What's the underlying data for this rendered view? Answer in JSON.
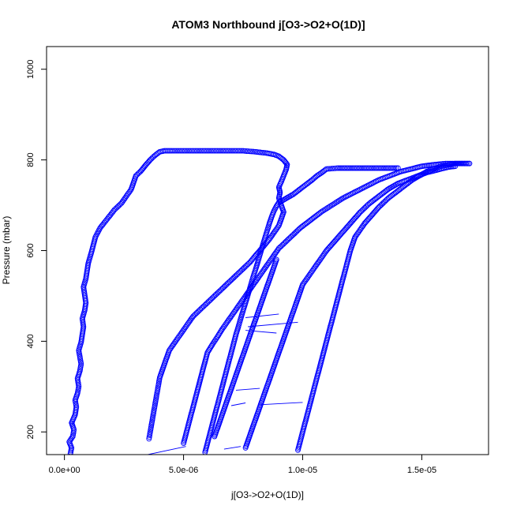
{
  "chart_data": {
    "type": "scatter",
    "title": "ATOM3 Northbound j[O3->O2+O(1D)]",
    "xlabel": "j[O3->O2+O(1D)]",
    "ylabel": "Pressure (mbar)",
    "xlim": [
      -7.5e-07,
      1.78e-05
    ],
    "ylim": [
      1050,
      150
    ],
    "y_reversed": true,
    "xticks": [
      0,
      5e-06,
      1e-05,
      1.5e-05
    ],
    "xtick_labels": [
      "0.0e+00",
      "5.0e-06",
      "1.0e-05",
      "1.5e-05"
    ],
    "yticks": [
      200,
      400,
      600,
      800,
      1000
    ],
    "ytick_labels": [
      "200",
      "400",
      "600",
      "800",
      "1000"
    ],
    "grid": false,
    "legend": "none",
    "marker": "open-circle",
    "color": "#0000ff",
    "series": [
      {
        "profile": 1,
        "x": [
          2.5e-07,
          3e-07,
          2e-07,
          3.5e-07,
          4e-07,
          3e-07,
          4.5e-07,
          5e-07,
          4.5e-07,
          5.5e-07,
          6e-07,
          5.5e-07,
          6.5e-07,
          7e-07,
          6.5e-07,
          6e-07,
          7e-07,
          7.5e-07,
          8e-07,
          7.5e-07,
          8.5e-07,
          9e-07,
          8.5e-07,
          8e-07,
          9e-07,
          9.5e-07,
          1e-06,
          1.1e-06,
          1.2e-06,
          1.3e-06,
          1.5e-06,
          1.8e-06,
          2.1e-06,
          2.4e-06,
          2.6e-06,
          2.8e-06,
          2.9e-06,
          3e-06,
          3.2e-06,
          3.4e-06,
          3.6e-06,
          3.8e-06,
          4e-06,
          4.2e-06,
          4.5e-06,
          5e-06,
          5.5e-06,
          6e-06,
          6.5e-06,
          7e-06,
          7.5e-06,
          8e-06,
          8.5e-06,
          8.8e-06,
          9e-06,
          9.2e-06,
          9.35e-06,
          9.3e-06,
          9.2e-06,
          9.1e-06,
          9e-06,
          9.05e-06,
          9e-06,
          9.1e-06,
          9.2e-06,
          9.1e-06,
          9e-06,
          8.8e-06,
          8.6e-06,
          8.4e-06,
          8.2e-06,
          8e-06,
          7.8e-06,
          7.5e-06,
          7.2e-06,
          6.9e-06,
          6.6e-06,
          6.3e-06,
          6e-06,
          5.7e-06,
          5.4e-06,
          5.2e-06,
          5e-06,
          4.8e-06,
          4.6e-06,
          4.4e-06,
          4.3e-06,
          4.2e-06,
          4.1e-06,
          4e-06,
          3.95e-06,
          3.9e-06,
          3.85e-06,
          3.8e-06,
          3.75e-06,
          3.7e-06,
          3.65e-06,
          3.6e-06,
          3.55e-06
        ],
        "y": [
          152,
          165,
          178,
          190,
          205,
          220,
          238,
          255,
          270,
          285,
          300,
          318,
          335,
          350,
          365,
          380,
          398,
          415,
          432,
          450,
          468,
          485,
          502,
          520,
          538,
          555,
          572,
          590,
          610,
          630,
          650,
          670,
          690,
          705,
          720,
          735,
          750,
          765,
          775,
          788,
          800,
          810,
          818,
          820,
          820,
          820,
          820,
          820,
          820,
          820,
          820,
          818,
          815,
          812,
          808,
          800,
          790,
          778,
          765,
          752,
          740,
          728,
          716,
          700,
          685,
          670,
          655,
          640,
          625,
          612,
          600,
          588,
          575,
          560,
          545,
          530,
          515,
          500,
          485,
          470,
          455,
          440,
          425,
          410,
          395,
          380,
          365,
          350,
          335,
          320,
          305,
          290,
          275,
          260,
          245,
          230,
          215,
          200,
          185
        ]
      },
      {
        "profile": 2,
        "x": [
          5.9e-06,
          6e-06,
          6.1e-06,
          6.2e-06,
          6.3e-06,
          6.4e-06,
          6.5e-06,
          6.6e-06,
          6.7e-06,
          6.8e-06,
          6.9e-06,
          7e-06,
          7.1e-06,
          7.2e-06,
          7.3e-06,
          7.4e-06,
          7.5e-06,
          7.6e-06,
          7.7e-06,
          7.8e-06,
          7.9e-06,
          8e-06,
          8.1e-06,
          8.2e-06,
          8.3e-06,
          8.4e-06,
          8.5e-06,
          8.6e-06,
          8.7e-06,
          8.8e-06,
          8.9e-06,
          9e-06,
          9.2e-06,
          9.4e-06,
          9.6e-06,
          9.8e-06,
          1e-05,
          1.02e-05,
          1.04e-05,
          1.06e-05,
          1.08e-05,
          1.1e-05,
          1.15e-05,
          1.2e-05,
          1.25e-05,
          1.3e-05,
          1.35e-05,
          1.4e-05
        ],
        "y": [
          155,
          175,
          195,
          215,
          235,
          255,
          275,
          295,
          315,
          335,
          355,
          375,
          395,
          415,
          432,
          450,
          468,
          485,
          502,
          520,
          538,
          555,
          572,
          590,
          608,
          625,
          642,
          660,
          675,
          688,
          698,
          706,
          712,
          718,
          724,
          732,
          740,
          748,
          756,
          765,
          772,
          780,
          782,
          782,
          782,
          782,
          782,
          782
        ]
      },
      {
        "profile": 3,
        "x": [
          5e-06,
          5.1e-06,
          5.2e-06,
          5.3e-06,
          5.4e-06,
          5.5e-06,
          5.6e-06,
          5.7e-06,
          5.8e-06,
          5.9e-06,
          6e-06,
          6.2e-06,
          6.4e-06,
          6.6e-06,
          6.8e-06,
          7e-06,
          7.2e-06,
          7.4e-06,
          7.6e-06,
          7.8e-06,
          8e-06,
          8.2e-06,
          8.4e-06,
          8.6e-06,
          8.8e-06,
          9e-06,
          9.3e-06,
          9.6e-06,
          9.9e-06,
          1.02e-05,
          1.05e-05,
          1.08e-05,
          1.11e-05,
          1.14e-05,
          1.17e-05,
          1.2e-05,
          1.23e-05,
          1.26e-05,
          1.29e-05,
          1.32e-05,
          1.35e-05,
          1.38e-05,
          1.41e-05,
          1.44e-05,
          1.47e-05,
          1.5e-05,
          1.53e-05,
          1.56e-05,
          1.6e-05,
          1.65e-05,
          1.7e-05
        ],
        "y": [
          175,
          195,
          215,
          235,
          255,
          275,
          295,
          315,
          335,
          355,
          375,
          392,
          408,
          425,
          440,
          455,
          470,
          485,
          500,
          515,
          530,
          545,
          560,
          575,
          590,
          605,
          620,
          635,
          650,
          662,
          674,
          686,
          696,
          706,
          716,
          724,
          732,
          740,
          748,
          756,
          762,
          768,
          774,
          778,
          782,
          786,
          788,
          790,
          792,
          792,
          792
        ]
      },
      {
        "profile": 4,
        "x": [
          7.6e-06,
          7.7e-06,
          7.8e-06,
          7.9e-06,
          8e-06,
          8.1e-06,
          8.2e-06,
          8.3e-06,
          8.4e-06,
          8.5e-06,
          8.6e-06,
          8.7e-06,
          8.8e-06,
          8.9e-06,
          9e-06,
          9.1e-06,
          9.2e-06,
          9.3e-06,
          9.4e-06,
          9.5e-06,
          9.6e-06,
          9.7e-06,
          9.8e-06,
          9.9e-06,
          1e-05,
          1.02e-05,
          1.04e-05,
          1.06e-05,
          1.08e-05,
          1.1e-05,
          1.12e-05,
          1.14e-05,
          1.16e-05,
          1.18e-05,
          1.2e-05,
          1.22e-05,
          1.24e-05,
          1.26e-05,
          1.28e-05,
          1.3e-05,
          1.32e-05,
          1.34e-05,
          1.36e-05,
          1.38e-05,
          1.4e-05,
          1.43e-05,
          1.46e-05,
          1.49e-05,
          1.52e-05,
          1.55e-05,
          1.58e-05,
          1.61e-05,
          1.64e-05
        ],
        "y": [
          165,
          180,
          195,
          210,
          225,
          240,
          255,
          270,
          285,
          300,
          315,
          330,
          345,
          360,
          375,
          390,
          405,
          420,
          435,
          450,
          465,
          480,
          495,
          510,
          525,
          540,
          555,
          570,
          585,
          600,
          612,
          624,
          636,
          648,
          660,
          672,
          684,
          694,
          704,
          712,
          720,
          728,
          736,
          742,
          748,
          754,
          760,
          766,
          772,
          776,
          780,
          784,
          786
        ]
      },
      {
        "profile": 5,
        "x": [
          9.8e-06,
          9.9e-06,
          1e-05,
          1.01e-05,
          1.02e-05,
          1.03e-05,
          1.04e-05,
          1.05e-05,
          1.06e-05,
          1.07e-05,
          1.08e-05,
          1.09e-05,
          1.1e-05,
          1.11e-05,
          1.12e-05,
          1.13e-05,
          1.14e-05,
          1.15e-05,
          1.16e-05,
          1.17e-05,
          1.18e-05,
          1.19e-05,
          1.2e-05,
          1.21e-05,
          1.22e-05,
          1.24e-05,
          1.26e-05,
          1.28e-05,
          1.3e-05,
          1.32e-05,
          1.34e-05,
          1.36e-05,
          1.38e-05,
          1.4e-05,
          1.42e-05,
          1.44e-05,
          1.46e-05,
          1.48e-05,
          1.5e-05,
          1.52e-05,
          1.54e-05,
          1.56e-05,
          1.58e-05,
          1.6e-05,
          1.62e-05,
          1.64e-05,
          1.66e-05,
          1.68e-05,
          1.7e-05
        ],
        "y": [
          160,
          180,
          200,
          220,
          240,
          260,
          280,
          300,
          320,
          340,
          360,
          380,
          400,
          420,
          440,
          460,
          480,
          500,
          520,
          540,
          560,
          580,
          600,
          615,
          630,
          645,
          660,
          672,
          684,
          696,
          706,
          716,
          724,
          732,
          740,
          748,
          756,
          762,
          768,
          774,
          778,
          782,
          786,
          788,
          790,
          792,
          792,
          792,
          792
        ]
      },
      {
        "profile": 6,
        "x": [
          6.3e-06,
          6.4e-06,
          6.5e-06,
          6.6e-06,
          6.7e-06,
          6.8e-06,
          6.9e-06,
          7e-06,
          7.1e-06,
          7.2e-06,
          7.3e-06,
          7.4e-06,
          7.5e-06,
          7.6e-06,
          7.7e-06,
          7.8e-06,
          7.9e-06,
          8e-06,
          8.1e-06,
          8.2e-06,
          8.3e-06,
          8.4e-06,
          8.5e-06,
          8.6e-06,
          8.7e-06,
          8.8e-06,
          8.9e-06
        ],
        "y": [
          190,
          205,
          220,
          235,
          250,
          265,
          280,
          295,
          310,
          325,
          340,
          355,
          370,
          385,
          400,
          415,
          430,
          445,
          460,
          475,
          490,
          505,
          520,
          535,
          550,
          565,
          580
        ]
      }
    ],
    "connector_segments": [
      {
        "x": [
          3.5e-06,
          5.1e-06
        ],
        "y": [
          150,
          168
        ]
      },
      {
        "x": [
          6.7e-06,
          7.4e-06
        ],
        "y": [
          162,
          168
        ]
      },
      {
        "x": [
          7e-06,
          7.6e-06
        ],
        "y": [
          258,
          264
        ]
      },
      {
        "x": [
          8.2e-06,
          1e-05
        ],
        "y": [
          260,
          265
        ]
      },
      {
        "x": [
          7.2e-06,
          8.2e-06
        ],
        "y": [
          292,
          296
        ]
      },
      {
        "x": [
          7.6e-06,
          8.9e-06
        ],
        "y": [
          424,
          418
        ]
      },
      {
        "x": [
          7.7e-06,
          9.8e-06
        ],
        "y": [
          432,
          442
        ]
      },
      {
        "x": [
          7.6e-06,
          9e-06
        ],
        "y": [
          452,
          460
        ]
      }
    ]
  }
}
